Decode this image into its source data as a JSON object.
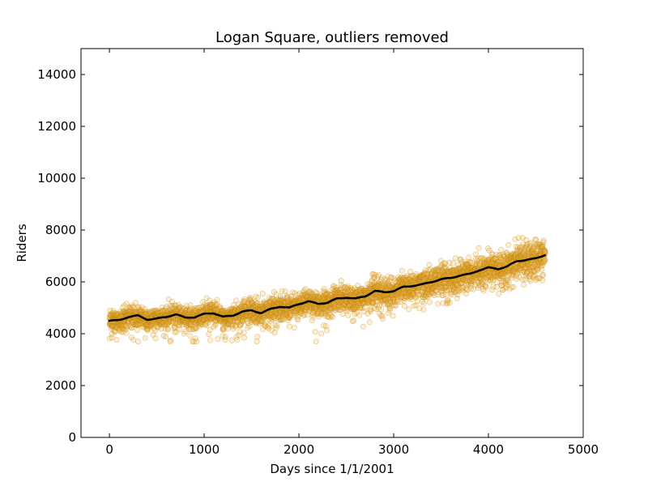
{
  "chart_data": {
    "type": "scatter",
    "title": "Logan Square, outliers removed",
    "xlabel": "Days since 1/1/2001",
    "ylabel": "Riders",
    "xlim": [
      -300,
      5000
    ],
    "ylim": [
      0,
      15000
    ],
    "xticks": [
      0,
      1000,
      2000,
      3000,
      4000,
      5000
    ],
    "yticks": [
      0,
      2000,
      4000,
      6000,
      8000,
      10000,
      12000,
      14000
    ],
    "grid": false,
    "legend": "none",
    "point_color": "#f5b342",
    "point_edge_color": "#b8860b",
    "trend_color": "#000000",
    "series": [
      {
        "kind": "scatter",
        "x_range": [
          0,
          4600
        ],
        "y_approx_range": [
          3700,
          7700
        ],
        "points_approx": 4300
      },
      {
        "kind": "trend-line",
        "x": [
          0,
          100,
          200,
          300,
          400,
          500,
          600,
          700,
          800,
          900,
          1000,
          1100,
          1200,
          1300,
          1400,
          1500,
          1600,
          1700,
          1800,
          1900,
          2000,
          2100,
          2200,
          2300,
          2400,
          2500,
          2600,
          2700,
          2800,
          2900,
          3000,
          3100,
          3200,
          3300,
          3400,
          3500,
          3600,
          3700,
          3800,
          3900,
          4000,
          4100,
          4200,
          4300,
          4400,
          4500,
          4600
        ],
        "y": [
          4500,
          4520,
          4650,
          4700,
          4550,
          4580,
          4650,
          4750,
          4620,
          4640,
          4760,
          4800,
          4650,
          4700,
          4850,
          4900,
          4800,
          4950,
          5050,
          5000,
          5150,
          5250,
          5150,
          5200,
          5350,
          5400,
          5350,
          5450,
          5650,
          5600,
          5650,
          5800,
          5850,
          5900,
          6000,
          6100,
          6150,
          6250,
          6300,
          6450,
          6550,
          6500,
          6600,
          6800,
          6850,
          6900,
          7050
        ]
      }
    ]
  }
}
